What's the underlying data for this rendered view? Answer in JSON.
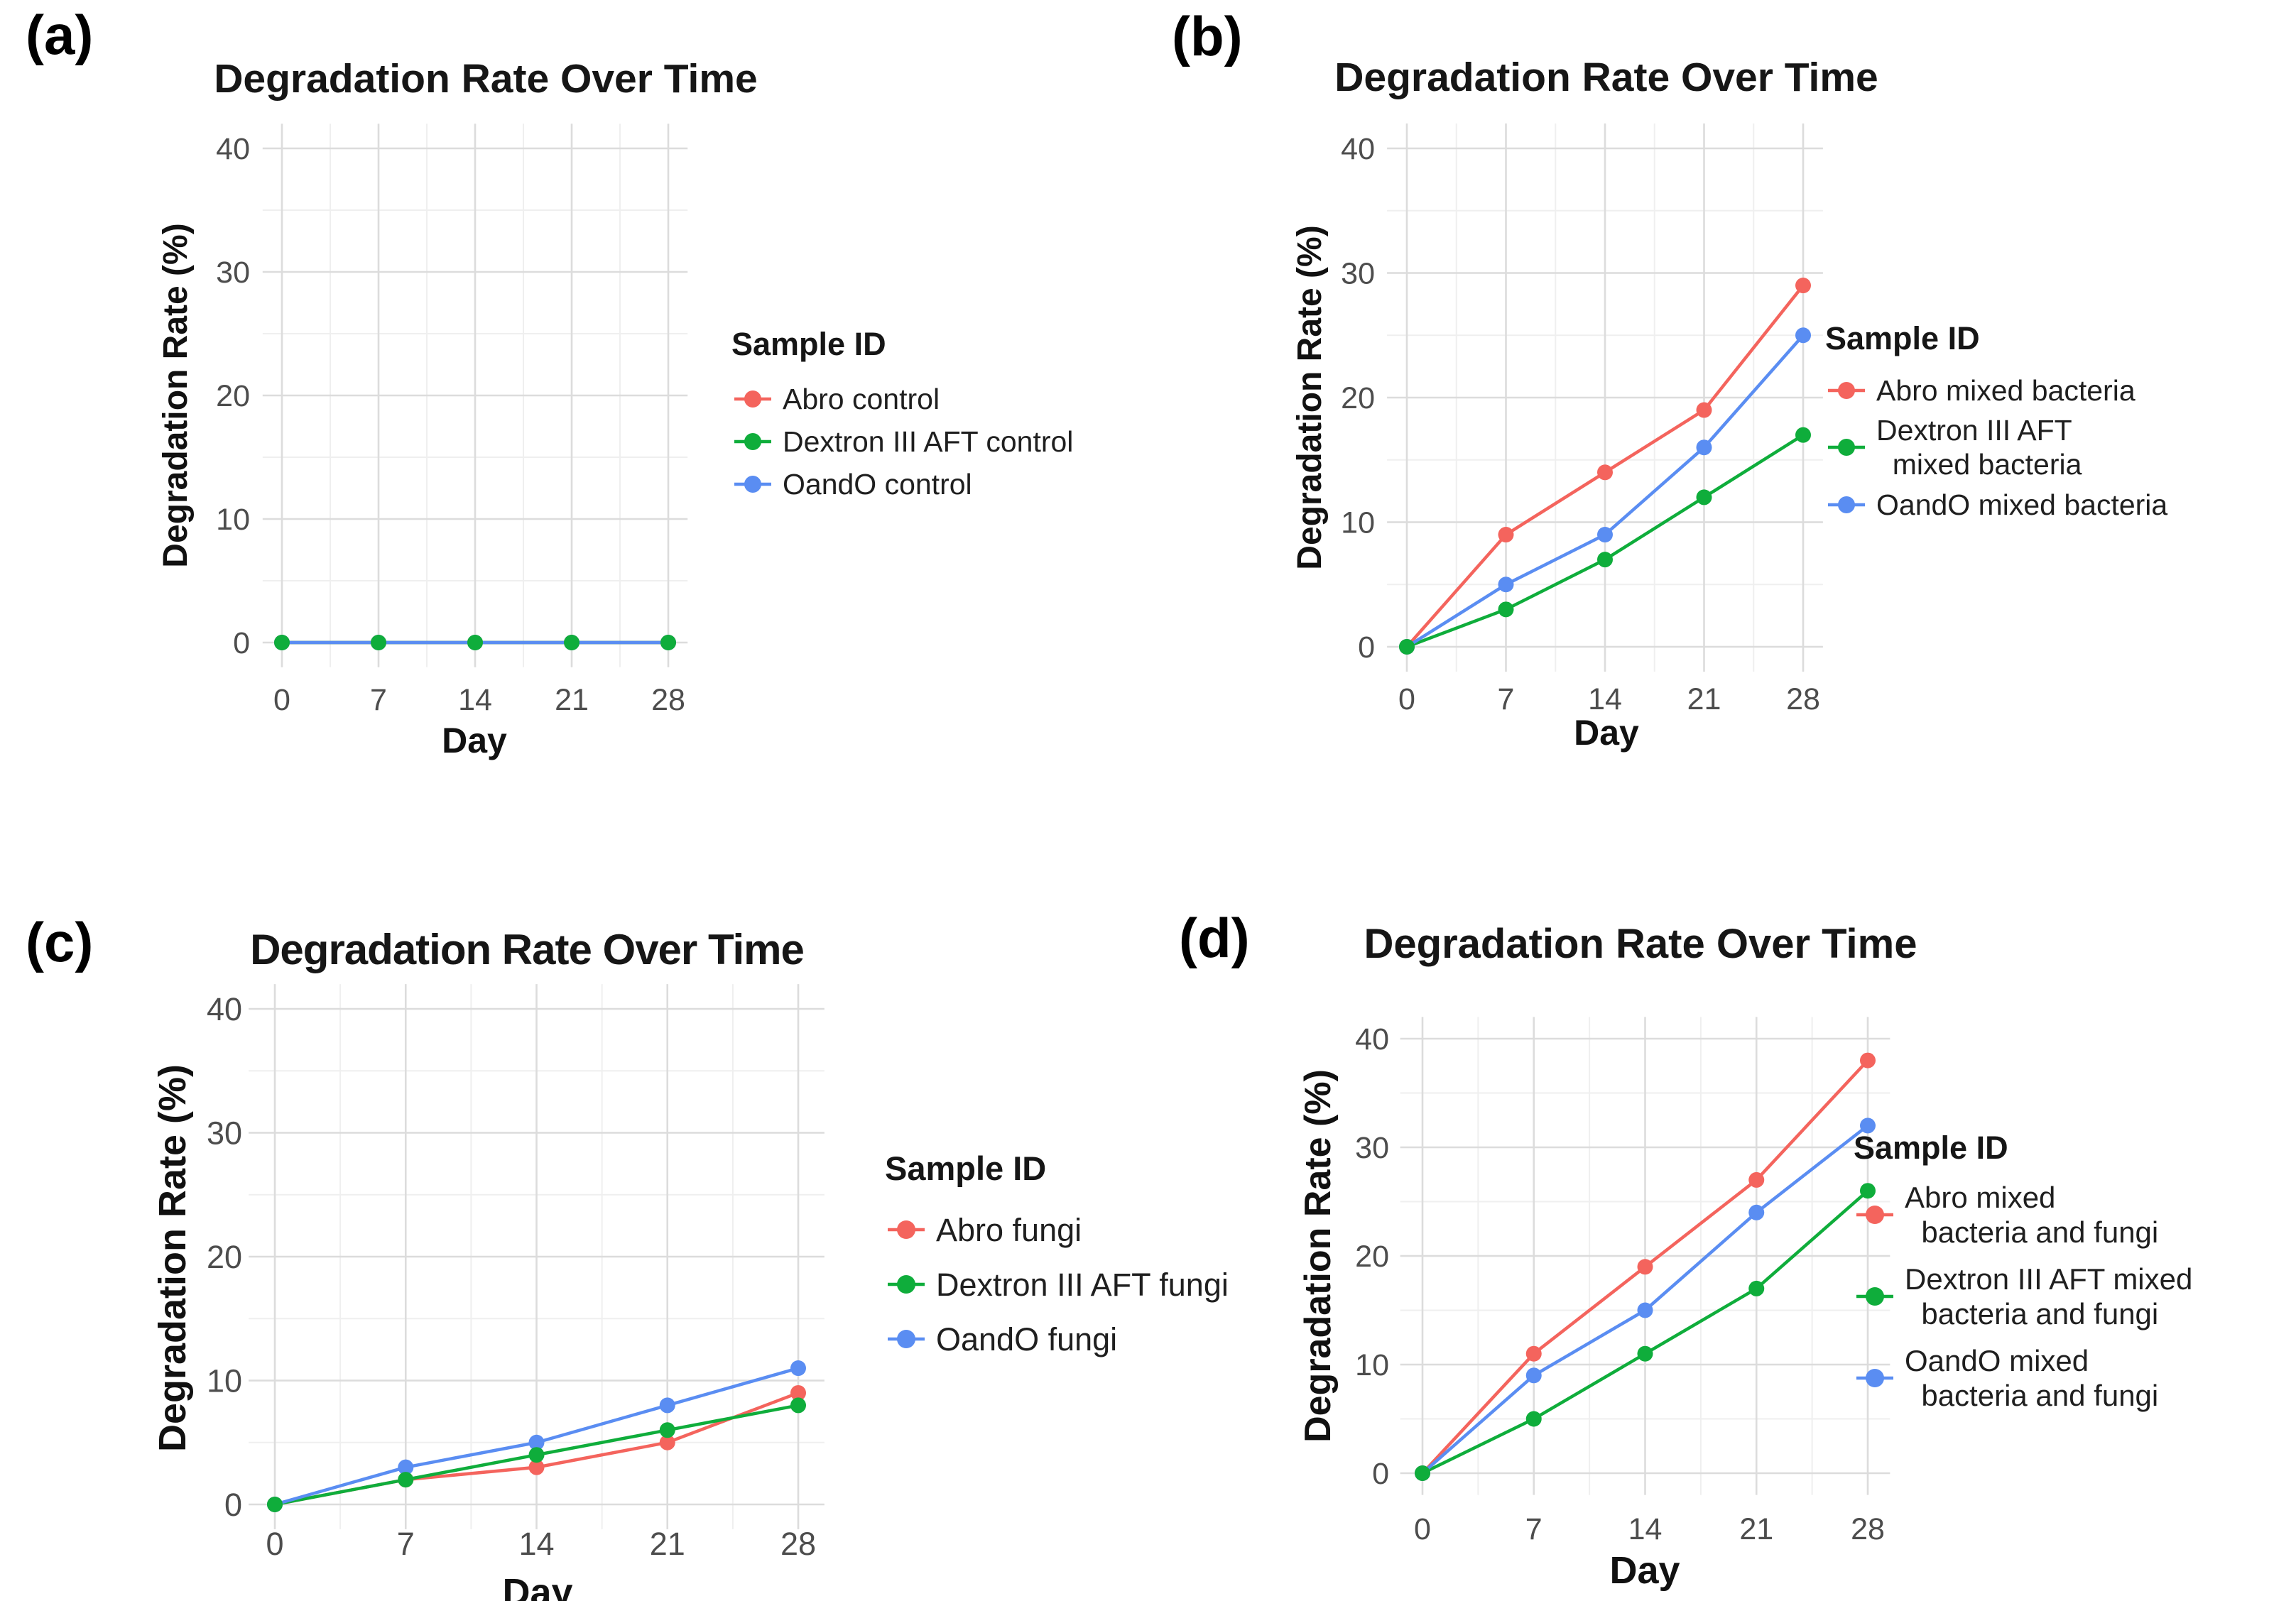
{
  "figure": {
    "background": "#ffffff",
    "grid_major_color": "#dcdcdc",
    "grid_minor_color": "#efefef",
    "tick_label_color": "#4d4d4d"
  },
  "chart_data": [
    {
      "panel_label": "(a)",
      "type": "line",
      "title": "Degradation Rate Over Time",
      "xlabel": "Day",
      "ylabel": "Degradation Rate (%)",
      "x": [
        0,
        7,
        14,
        21,
        28
      ],
      "xticks": [
        0,
        7,
        14,
        21,
        28
      ],
      "yticks": [
        0,
        10,
        20,
        30,
        40
      ],
      "xlim": [
        0,
        28
      ],
      "ylim": [
        0,
        40
      ],
      "grid": true,
      "legend_title": "Sample ID",
      "legend_position": "right",
      "series": [
        {
          "name": "Abro control",
          "label_lines": [
            "Abro control"
          ],
          "color": "#F4645D",
          "values": [
            0,
            0,
            0,
            0,
            0
          ]
        },
        {
          "name": "Dextron III AFT control",
          "label_lines": [
            "Dextron III AFT control"
          ],
          "color": "#0FAD3B",
          "values": [
            0,
            0,
            0,
            0,
            0
          ]
        },
        {
          "name": "OandO control",
          "label_lines": [
            "OandO control"
          ],
          "color": "#5A8DF2",
          "values": [
            0,
            0,
            0,
            0,
            0
          ]
        }
      ]
    },
    {
      "panel_label": "(b)",
      "type": "line",
      "title": "Degradation Rate Over Time",
      "xlabel": "Day",
      "ylabel": "Degradation Rate (%)",
      "x": [
        0,
        7,
        14,
        21,
        28
      ],
      "xticks": [
        0,
        7,
        14,
        21,
        28
      ],
      "yticks": [
        0,
        10,
        20,
        30,
        40
      ],
      "xlim": [
        0,
        28
      ],
      "ylim": [
        0,
        40
      ],
      "grid": true,
      "legend_title": "Sample ID",
      "legend_position": "right",
      "series": [
        {
          "name": "Abro mixed bacteria",
          "label_lines": [
            "Abro mixed bacteria"
          ],
          "color": "#F4645D",
          "values": [
            0,
            9,
            14,
            19,
            29
          ]
        },
        {
          "name": "Dextron III AFT mixed bacteria",
          "label_lines": [
            "Dextron III AFT",
            "  mixed bacteria"
          ],
          "color": "#0FAD3B",
          "values": [
            0,
            3,
            7,
            12,
            17
          ]
        },
        {
          "name": "OandO mixed bacteria",
          "label_lines": [
            "OandO mixed bacteria"
          ],
          "color": "#5A8DF2",
          "values": [
            0,
            5,
            9,
            16,
            25
          ]
        }
      ]
    },
    {
      "panel_label": "(c)",
      "type": "line",
      "title": "Degradation Rate Over Time",
      "xlabel": "Day",
      "ylabel": "Degradation Rate (%)",
      "x": [
        0,
        7,
        14,
        21,
        28
      ],
      "xticks": [
        0,
        7,
        14,
        21,
        28
      ],
      "yticks": [
        0,
        10,
        20,
        30,
        40
      ],
      "xlim": [
        0,
        28
      ],
      "ylim": [
        0,
        40
      ],
      "grid": true,
      "legend_title": "Sample ID",
      "legend_position": "right",
      "series": [
        {
          "name": "Abro fungi",
          "label_lines": [
            "Abro fungi"
          ],
          "color": "#F4645D",
          "values": [
            0,
            2,
            3,
            5,
            9
          ]
        },
        {
          "name": "Dextron III AFT fungi",
          "label_lines": [
            "Dextron III AFT fungi"
          ],
          "color": "#0FAD3B",
          "values": [
            0,
            2,
            4,
            6,
            8
          ]
        },
        {
          "name": "OandO fungi",
          "label_lines": [
            "OandO fungi"
          ],
          "color": "#5A8DF2",
          "values": [
            0,
            3,
            5,
            8,
            11
          ]
        }
      ]
    },
    {
      "panel_label": "(d)",
      "type": "line",
      "title": "Degradation Rate Over Time",
      "xlabel": "Day",
      "ylabel": "Degradation Rate (%)",
      "x": [
        0,
        7,
        14,
        21,
        28
      ],
      "xticks": [
        0,
        7,
        14,
        21,
        28
      ],
      "yticks": [
        0,
        10,
        20,
        30,
        40
      ],
      "xlim": [
        0,
        28
      ],
      "ylim": [
        0,
        40
      ],
      "grid": true,
      "legend_title": "Sample ID",
      "legend_position": "right",
      "series": [
        {
          "name": "Abro mixed bacteria and fungi",
          "label_lines": [
            "Abro mixed",
            "  bacteria and fungi"
          ],
          "color": "#F4645D",
          "values": [
            0,
            11,
            19,
            27,
            38
          ]
        },
        {
          "name": "Dextron III AFT mixed bacteria and fungi",
          "label_lines": [
            "Dextron III AFT mixed",
            "  bacteria and fungi"
          ],
          "color": "#0FAD3B",
          "values": [
            0,
            5,
            11,
            17,
            26
          ]
        },
        {
          "name": "OandO mixed bacteria and fungi",
          "label_lines": [
            "OandO mixed",
            "  bacteria and fungi"
          ],
          "color": "#5A8DF2",
          "values": [
            0,
            9,
            15,
            24,
            32
          ]
        }
      ]
    }
  ]
}
